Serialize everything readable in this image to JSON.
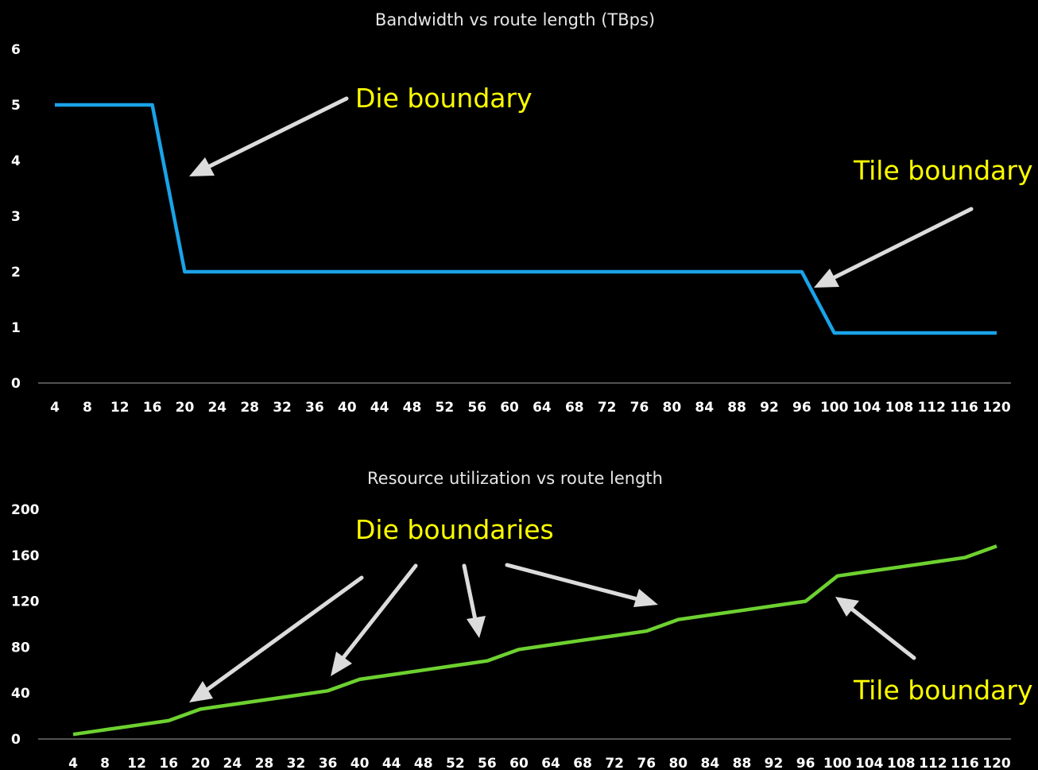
{
  "colors": {
    "background": "#000000",
    "series1": "#1aa3e8",
    "series2": "#6dd130",
    "annotation": "#ffff00",
    "arrow": "#dcdcdc"
  },
  "chart_data": [
    {
      "type": "line",
      "title": "Bandwidth vs route length (TBps)",
      "x": [
        4,
        8,
        12,
        16,
        20,
        24,
        28,
        32,
        36,
        40,
        44,
        48,
        52,
        56,
        60,
        64,
        68,
        72,
        76,
        80,
        84,
        88,
        92,
        96,
        100,
        104,
        108,
        112,
        116,
        120
      ],
      "series": [
        {
          "values": [
            5,
            5,
            5,
            5,
            2,
            2,
            2,
            2,
            2,
            2,
            2,
            2,
            2,
            2,
            2,
            2,
            2,
            2,
            2,
            2,
            2,
            2,
            2,
            2,
            0.9,
            0.9,
            0.9,
            0.9,
            0.9,
            0.9
          ]
        }
      ],
      "yticks": [
        0,
        1,
        2,
        3,
        4,
        5,
        6
      ],
      "ylim": [
        0,
        6
      ],
      "grid": false,
      "annotations": [
        {
          "text": "Die boundary"
        },
        {
          "text": "Tile boundary"
        }
      ]
    },
    {
      "type": "line",
      "title": "Resource utilization vs route length",
      "x": [
        4,
        8,
        12,
        16,
        20,
        24,
        28,
        32,
        36,
        40,
        44,
        48,
        52,
        56,
        60,
        64,
        68,
        72,
        76,
        80,
        84,
        88,
        92,
        96,
        100,
        104,
        108,
        112,
        116,
        120
      ],
      "series": [
        {
          "values": [
            4,
            8,
            12,
            16,
            26,
            30,
            34,
            38,
            42,
            52,
            56,
            60,
            64,
            68,
            78,
            82,
            86,
            90,
            94,
            104,
            108,
            112,
            116,
            120,
            142,
            146,
            150,
            154,
            158,
            168
          ]
        }
      ],
      "yticks": [
        0,
        40,
        80,
        120,
        160,
        200
      ],
      "ylim": [
        0,
        200
      ],
      "grid": false,
      "annotations": [
        {
          "text": "Die boundaries"
        },
        {
          "text": "Tile boundary"
        }
      ]
    }
  ]
}
